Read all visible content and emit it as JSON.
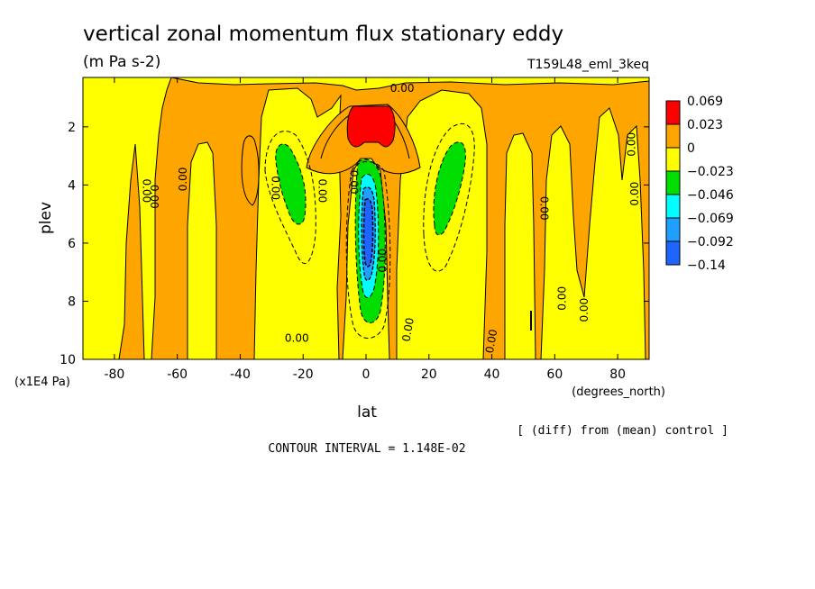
{
  "chart_data": {
    "type": "heatmap",
    "title": "vertical zonal momentum flux stationary eddy",
    "units": "(m Pa s-2)",
    "run_label": "T159L48_eml_3keq",
    "xlabel": "lat",
    "x_units": "(degrees_north)",
    "ylabel": "plev",
    "y_units": "(x1E4 Pa)",
    "xlim": [
      -90,
      90
    ],
    "ylim": [
      10,
      0.3
    ],
    "x_ticks": [
      -80,
      -60,
      -40,
      -20,
      0,
      20,
      40,
      60,
      80
    ],
    "y_ticks": [
      2,
      4,
      6,
      8,
      10
    ],
    "diff_note": "[ (diff) from (mean) control ]",
    "contour_interval_text": "CONTOUR INTERVAL = 1.148E-02",
    "contour_label": "0.00",
    "colorbar": {
      "levels": [
        "0.069",
        "0.023",
        "0",
        "−0.023",
        "−0.046",
        "−0.069",
        "−0.092",
        "−0.14"
      ],
      "colors": [
        "#ff0000",
        "#ffa500",
        "#ffff00",
        "#00dd00",
        "#00ffff",
        "#1f9fff",
        "#1e64ff"
      ]
    },
    "features": [
      {
        "name": "equatorial positive maximum",
        "lat": 3,
        "plev": 1.3,
        "sign": "positive",
        "band": 0
      },
      {
        "name": "equatorial negative core",
        "lat": 0,
        "plev": 5.2,
        "sign": "negative",
        "band": 6
      },
      {
        "name": "southern subtropical minimum",
        "lat": -27,
        "plev": 3.6,
        "sign": "negative",
        "band": 3
      },
      {
        "name": "northern subtropical minimum",
        "lat": 25,
        "plev": 4.0,
        "sign": "negative",
        "band": 3
      }
    ]
  }
}
